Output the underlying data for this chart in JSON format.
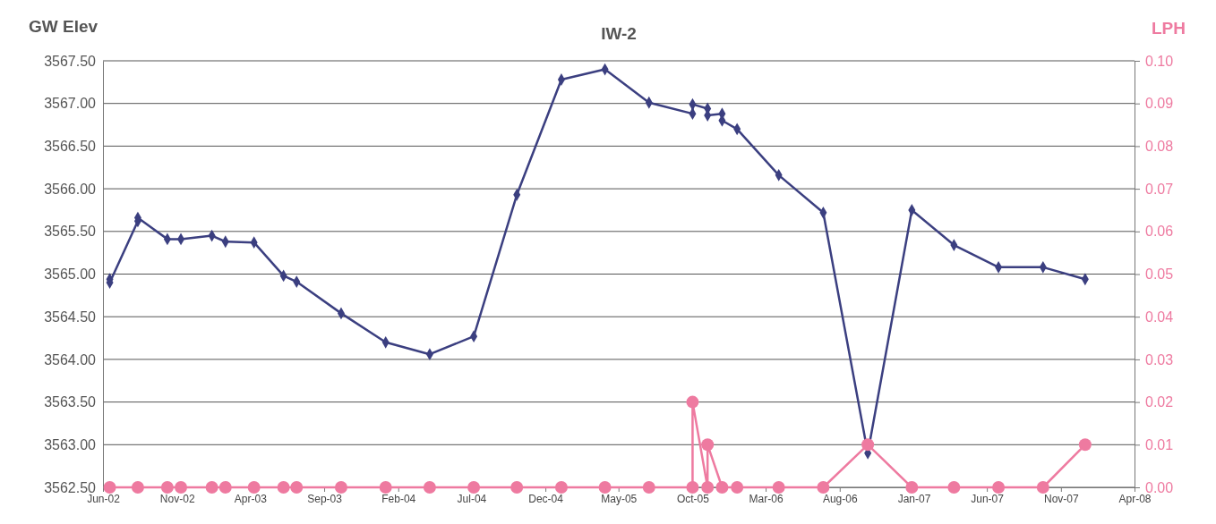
{
  "chart_data": {
    "type": "line",
    "title": "IW-2",
    "ylabel": "GW Elev",
    "y2label": "LPH",
    "xlim": [
      "2002-06",
      "2008-04"
    ],
    "xticks": [
      {
        "value": "2002-06",
        "label": "Jun-02"
      },
      {
        "value": "2002-11",
        "label": "Nov-02"
      },
      {
        "value": "2003-04",
        "label": "Apr-03"
      },
      {
        "value": "2003-09",
        "label": "Sep-03"
      },
      {
        "value": "2004-02",
        "label": "Feb-04"
      },
      {
        "value": "2004-07",
        "label": "Jul-04"
      },
      {
        "value": "2004-12",
        "label": "Dec-04"
      },
      {
        "value": "2005-05",
        "label": "May-05"
      },
      {
        "value": "2005-10",
        "label": "Oct-05"
      },
      {
        "value": "2006-03",
        "label": "Mar-06"
      },
      {
        "value": "2006-08",
        "label": "Aug-06"
      },
      {
        "value": "2007-01",
        "label": "Jan-07"
      },
      {
        "value": "2007-06",
        "label": "Jun-07"
      },
      {
        "value": "2007-11",
        "label": "Nov-07"
      },
      {
        "value": "2008-04",
        "label": "Apr-08"
      }
    ],
    "ylim": [
      3562.5,
      3567.5
    ],
    "yticks": [
      {
        "value": 3562.5,
        "label": "3562.50"
      },
      {
        "value": 3563,
        "label": "3563.00"
      },
      {
        "value": 3563.5,
        "label": "3563.50"
      },
      {
        "value": 3564,
        "label": "3564.00"
      },
      {
        "value": 3564.5,
        "label": "3564.50"
      },
      {
        "value": 3565,
        "label": "3565.00"
      },
      {
        "value": 3565.5,
        "label": "3565.50"
      },
      {
        "value": 3566,
        "label": "3566.00"
      },
      {
        "value": 3566.5,
        "label": "3566.50"
      },
      {
        "value": 3567,
        "label": "3567.00"
      },
      {
        "value": 3567.5,
        "label": "3567.50"
      }
    ],
    "y2lim": [
      0,
      0.1
    ],
    "y2ticks": [
      {
        "value": 0,
        "label": "0.00"
      },
      {
        "value": 0.01,
        "label": "0.01"
      },
      {
        "value": 0.02,
        "label": "0.02"
      },
      {
        "value": 0.03,
        "label": "0.03"
      },
      {
        "value": 0.04,
        "label": "0.04"
      },
      {
        "value": 0.05,
        "label": "0.05"
      },
      {
        "value": 0.06,
        "label": "0.06"
      },
      {
        "value": 0.07,
        "label": "0.07"
      },
      {
        "value": 0.08,
        "label": "0.08"
      },
      {
        "value": 0.09,
        "label": "0.09"
      },
      {
        "value": 0.1,
        "label": "0.10"
      }
    ],
    "grid": "y",
    "legend": false,
    "line_style": "solid",
    "series": [
      {
        "color": "#3b3f80",
        "marker": "diamond",
        "x": [
          "2002-06-15",
          "2002-06-15",
          "2002-08-12",
          "2002-08-12",
          "2002-10-12",
          "2002-11-09",
          "2003-01-12",
          "2003-02-09",
          "2003-04-09",
          "2003-06-09",
          "2003-07-06",
          "2003-10-06",
          "2004-01-06",
          "2004-04-06",
          "2004-07-06",
          "2004-10-03",
          "2005-01-03",
          "2005-04-03",
          "2005-07-03",
          "2005-10-01",
          "2005-10-01",
          "2005-11-01",
          "2005-11-01",
          "2005-12-01",
          "2005-12-01",
          "2006-01-01",
          "2006-03-28",
          "2006-06-28",
          "2006-09-28",
          "2006-12-28",
          "2007-03-25",
          "2007-06-25",
          "2007-09-25",
          "2007-12-21"
        ],
        "values": [
          3564.94,
          3564.9,
          3565.62,
          3565.66,
          3565.41,
          3565.41,
          3565.45,
          3565.38,
          3565.37,
          3564.98,
          3564.91,
          3564.54,
          3564.2,
          3564.06,
          3564.27,
          3565.93,
          3567.28,
          3567.4,
          3567.01,
          3566.88,
          3566.99,
          3566.94,
          3566.86,
          3566.88,
          3566.8,
          3566.7,
          3566.16,
          3565.72,
          3562.9,
          3565.75,
          3565.34,
          3565.08,
          3565.08,
          3564.94
        ]
      },
      {
        "color": "#ee7aa0",
        "marker": "circle",
        "axis": "y2",
        "x": [
          "2002-06-15",
          "2002-08-12",
          "2002-10-12",
          "2002-11-09",
          "2003-01-12",
          "2003-02-09",
          "2003-04-09",
          "2003-06-09",
          "2003-07-06",
          "2003-10-06",
          "2004-01-06",
          "2004-04-06",
          "2004-07-06",
          "2004-10-03",
          "2005-01-03",
          "2005-04-03",
          "2005-07-03",
          "2005-10-01",
          "2005-10-01",
          "2005-11-01",
          "2005-11-01",
          "2005-12-01",
          "2006-01-01",
          "2006-03-28",
          "2006-06-28",
          "2006-09-28",
          "2006-12-28",
          "2007-03-25",
          "2007-06-25",
          "2007-09-25",
          "2007-12-21"
        ],
        "values": [
          0,
          0,
          0,
          0,
          0,
          0,
          0,
          0,
          0,
          0,
          0,
          0,
          0,
          0,
          0,
          0,
          0,
          0,
          0.02,
          0,
          0.01,
          0,
          0,
          0,
          0,
          0.01,
          0,
          0,
          0,
          0,
          0.01
        ]
      }
    ]
  }
}
